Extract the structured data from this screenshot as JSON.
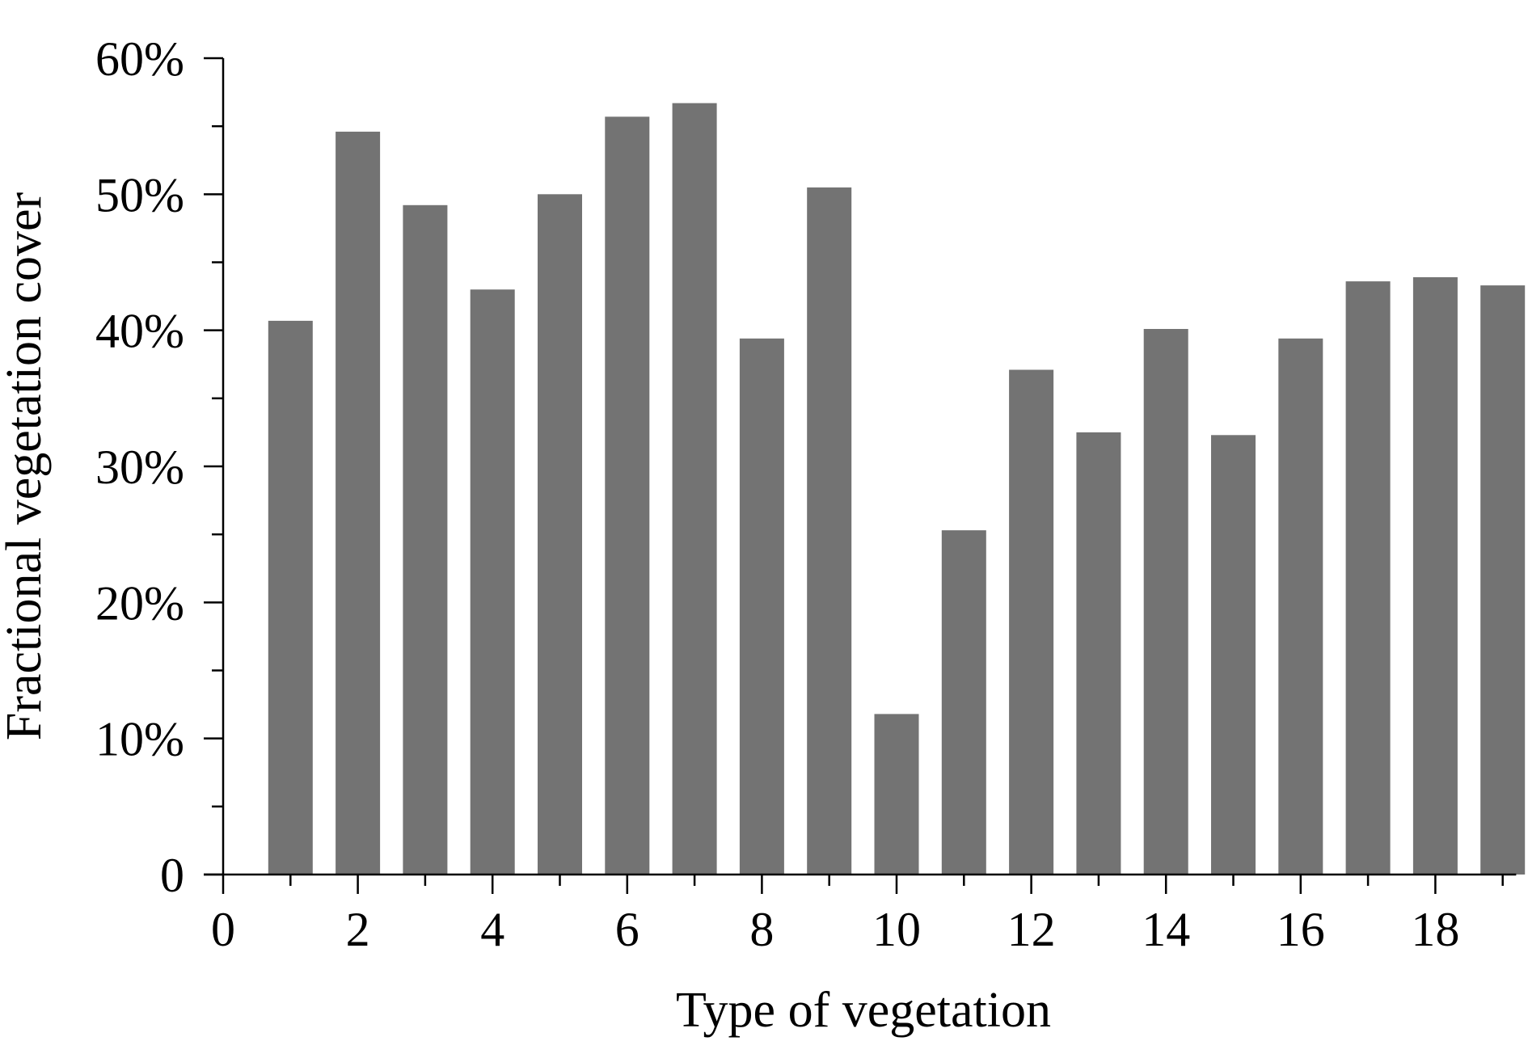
{
  "chart_data": {
    "type": "bar",
    "title": "",
    "xlabel": "Type of vegetation",
    "ylabel": "Fractional vegetation cover",
    "x": [
      1,
      2,
      3,
      4,
      5,
      6,
      7,
      8,
      9,
      10,
      11,
      12,
      13,
      14,
      15,
      16,
      17,
      18,
      19
    ],
    "values": [
      0.407,
      0.546,
      0.492,
      0.43,
      0.5,
      0.557,
      0.567,
      0.394,
      0.505,
      0.118,
      0.253,
      0.371,
      0.325,
      0.401,
      0.323,
      0.394,
      0.436,
      0.439,
      0.433
    ],
    "xlim": [
      0,
      19.2
    ],
    "ylim": [
      0,
      0.6
    ],
    "x_ticks": [
      0,
      2,
      4,
      6,
      8,
      10,
      12,
      14,
      16,
      18
    ],
    "x_tick_labels": [
      "0",
      "2",
      "4",
      "6",
      "8",
      "10",
      "12",
      "14",
      "16",
      "18"
    ],
    "x_minor_ticks": [
      1,
      3,
      5,
      7,
      9,
      11,
      13,
      15,
      17,
      19
    ],
    "y_ticks": [
      0,
      0.1,
      0.2,
      0.3,
      0.4,
      0.5,
      0.6
    ],
    "y_tick_labels": [
      "0",
      "10%",
      "20%",
      "30%",
      "40%",
      "50%",
      "60%"
    ],
    "y_minor_ticks": [
      0.05,
      0.15,
      0.25,
      0.35,
      0.45,
      0.55
    ],
    "grid": false,
    "legend": "none",
    "colors": {
      "bar": "#737373",
      "axis": "#000000",
      "text": "#000000",
      "background": "#ffffff"
    }
  }
}
